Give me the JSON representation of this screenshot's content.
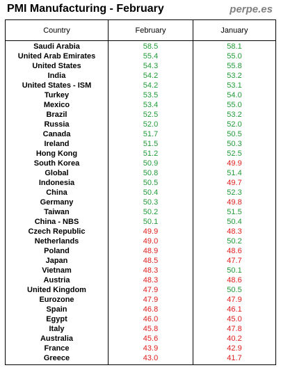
{
  "title": "PMI Manufacturing - February",
  "brand": "perpe.es",
  "colors": {
    "above": "#1f9a36",
    "below": "#e31b1b",
    "header": "#000000",
    "brand": "#808080"
  },
  "chart_data": {
    "type": "table",
    "columns": [
      "Country",
      "February",
      "January"
    ],
    "rows": [
      [
        "Saudi Arabia",
        58.5,
        58.1
      ],
      [
        "United Arab Emirates",
        55.4,
        55.0
      ],
      [
        "United States",
        54.3,
        55.8
      ],
      [
        "India",
        54.2,
        53.2
      ],
      [
        "United States - ISM",
        54.2,
        53.1
      ],
      [
        "Turkey",
        53.5,
        54.0
      ],
      [
        "Mexico",
        53.4,
        55.0
      ],
      [
        "Brazil",
        52.5,
        53.2
      ],
      [
        "Russia",
        52.0,
        52.0
      ],
      [
        "Canada",
        51.7,
        50.5
      ],
      [
        "Ireland",
        51.5,
        50.3
      ],
      [
        "Hong Kong",
        51.2,
        52.5
      ],
      [
        "South Korea",
        50.9,
        49.9
      ],
      [
        "Global",
        50.8,
        51.4
      ],
      [
        "Indonesia",
        50.5,
        49.7
      ],
      [
        "China",
        50.4,
        52.3
      ],
      [
        "Germany",
        50.3,
        49.8
      ],
      [
        "Taiwan",
        50.2,
        51.5
      ],
      [
        "China - NBS",
        50.1,
        50.4
      ],
      [
        "Czech Republic",
        49.9,
        48.3
      ],
      [
        "Netherlands",
        49.0,
        50.2
      ],
      [
        "Poland",
        48.9,
        48.6
      ],
      [
        "Japan",
        48.5,
        47.7
      ],
      [
        "Vietnam",
        48.3,
        50.1
      ],
      [
        "Austria",
        48.3,
        48.6
      ],
      [
        "United Kingdom",
        47.9,
        50.5
      ],
      [
        "Eurozone",
        47.9,
        47.9
      ],
      [
        "Spain",
        46.8,
        46.1
      ],
      [
        "Egypt",
        46.0,
        45.0
      ],
      [
        "Italy",
        45.8,
        47.8
      ],
      [
        "Australia",
        45.6,
        40.2
      ],
      [
        "France",
        43.9,
        42.9
      ],
      [
        "Greece",
        43.0,
        41.7
      ]
    ]
  }
}
